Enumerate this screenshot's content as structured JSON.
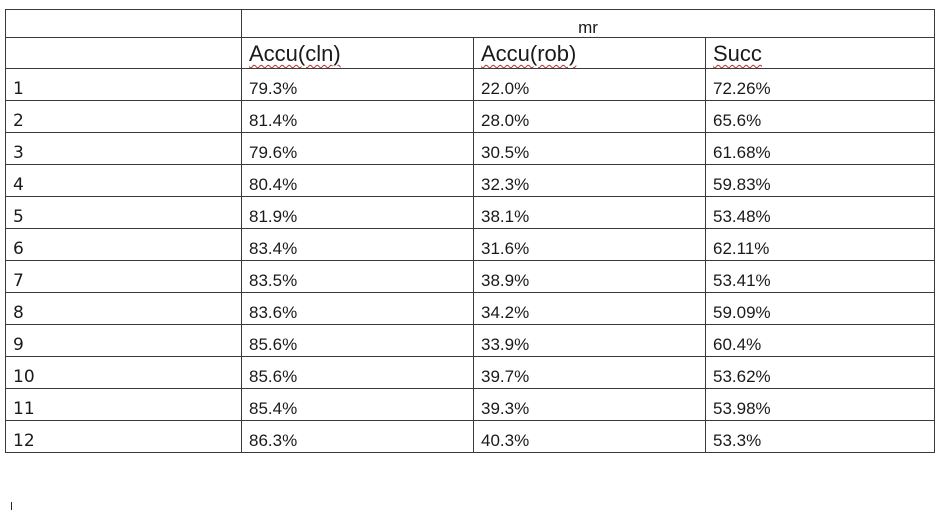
{
  "table": {
    "group_header": "mr",
    "columns": [
      "Accu(cln)",
      "Accu(rob)",
      "Succ"
    ],
    "rows": [
      {
        "label": "1",
        "cells": [
          "79.3%",
          "22.0%",
          "72.26%"
        ]
      },
      {
        "label": "2",
        "cells": [
          "81.4%",
          "28.0%",
          "65.6%"
        ]
      },
      {
        "label": "3",
        "cells": [
          "79.6%",
          "30.5%",
          "61.68%"
        ]
      },
      {
        "label": "4",
        "cells": [
          "80.4%",
          "32.3%",
          "59.83%"
        ]
      },
      {
        "label": "5",
        "cells": [
          "81.9%",
          "38.1%",
          "53.48%"
        ]
      },
      {
        "label": "6",
        "cells": [
          "83.4%",
          "31.6%",
          "62.11%"
        ]
      },
      {
        "label": "7",
        "cells": [
          "83.5%",
          "38.9%",
          "53.41%"
        ]
      },
      {
        "label": "8",
        "cells": [
          "83.6%",
          "34.2%",
          "59.09%"
        ]
      },
      {
        "label": "9",
        "cells": [
          "85.6%",
          "33.9%",
          "60.4%"
        ]
      },
      {
        "label": "10",
        "cells": [
          "85.6%",
          "39.7%",
          "53.62%"
        ]
      },
      {
        "label": "11",
        "cells": [
          "85.4%",
          "39.3%",
          "53.98%"
        ]
      },
      {
        "label": "12",
        "cells": [
          "86.3%",
          "40.3%",
          "53.3%"
        ]
      }
    ]
  }
}
